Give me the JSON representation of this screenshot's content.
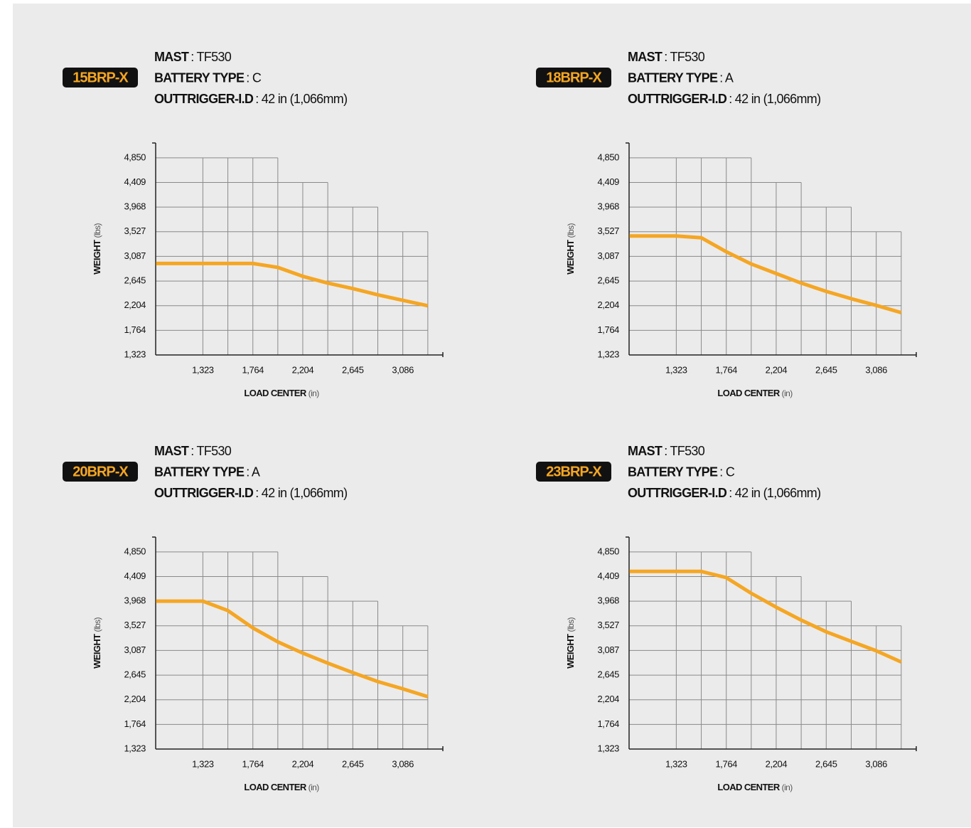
{
  "chart_data": [
    {
      "type": "line",
      "title": "15BRP-X",
      "specs": [
        {
          "label": "MAST",
          "value": ": TF530"
        },
        {
          "label": "BATTERY TYPE",
          "value": ": C"
        },
        {
          "label": "OUTTRIGGER-I.D",
          "value": ": 42 in (1,066mm)"
        }
      ],
      "xlabel": "LOAD CENTER",
      "xunit": "(in)",
      "ylabel": "WEIGHT",
      "yunit": "(lbs)",
      "x": [
        910,
        1323,
        1543,
        1764,
        1984,
        2204,
        2424,
        2645,
        2865,
        3086,
        3306
      ],
      "values": [
        2960,
        2960,
        2960,
        2960,
        2890,
        2730,
        2610,
        2510,
        2400,
        2300,
        2204
      ],
      "color": "#f5a623",
      "grid": true,
      "xlim": [
        907,
        3439
      ],
      "ylim": [
        1323,
        5115
      ],
      "xticks": [
        {
          "value": 1323,
          "label": "1,323"
        },
        {
          "value": 1764,
          "label": "1,764"
        },
        {
          "value": 2204,
          "label": "2,204"
        },
        {
          "value": 2645,
          "label": "2,645"
        },
        {
          "value": 3086,
          "label": "3,086"
        }
      ],
      "yticks": [
        {
          "value": 1323,
          "label": "1,323"
        },
        {
          "value": 1764,
          "label": "1,764"
        },
        {
          "value": 2204,
          "label": "2,204"
        },
        {
          "value": 2645,
          "label": "2,645"
        },
        {
          "value": 3087,
          "label": "3,087"
        },
        {
          "value": 3527,
          "label": "3,527"
        },
        {
          "value": 3968,
          "label": "3,968"
        },
        {
          "value": 4409,
          "label": "4,409"
        },
        {
          "value": 4850,
          "label": "4,850"
        }
      ]
    },
    {
      "type": "line",
      "title": "18BRP-X",
      "specs": [
        {
          "label": "MAST",
          "value": ": TF530"
        },
        {
          "label": "BATTERY TYPE",
          "value": ": A"
        },
        {
          "label": "OUTTRIGGER-I.D",
          "value": ": 42 in (1,066mm)"
        }
      ],
      "xlabel": "LOAD CENTER",
      "xunit": "(in)",
      "ylabel": "WEIGHT",
      "yunit": "(lbs)",
      "x": [
        910,
        1323,
        1543,
        1764,
        1984,
        2204,
        2424,
        2645,
        2865,
        3086,
        3306
      ],
      "values": [
        3450,
        3450,
        3420,
        3170,
        2950,
        2780,
        2610,
        2460,
        2330,
        2210,
        2080
      ],
      "color": "#f5a623",
      "grid": true,
      "xlim": [
        907,
        3439
      ],
      "ylim": [
        1323,
        5115
      ],
      "xticks": [
        {
          "value": 1323,
          "label": "1,323"
        },
        {
          "value": 1764,
          "label": "1,764"
        },
        {
          "value": 2204,
          "label": "2,204"
        },
        {
          "value": 2645,
          "label": "2,645"
        },
        {
          "value": 3086,
          "label": "3,086"
        }
      ],
      "yticks": [
        {
          "value": 1323,
          "label": "1,323"
        },
        {
          "value": 1764,
          "label": "1,764"
        },
        {
          "value": 2204,
          "label": "2,204"
        },
        {
          "value": 2645,
          "label": "2,645"
        },
        {
          "value": 3087,
          "label": "3,087"
        },
        {
          "value": 3527,
          "label": "3,527"
        },
        {
          "value": 3968,
          "label": "3,968"
        },
        {
          "value": 4409,
          "label": "4,409"
        },
        {
          "value": 4850,
          "label": "4,850"
        }
      ]
    },
    {
      "type": "line",
      "title": "20BRP-X",
      "specs": [
        {
          "label": "MAST",
          "value": ": TF530"
        },
        {
          "label": "BATTERY TYPE",
          "value": ": A"
        },
        {
          "label": "OUTTRIGGER-I.D",
          "value": ": 42 in (1,066mm)"
        }
      ],
      "xlabel": "LOAD CENTER",
      "xunit": "(in)",
      "ylabel": "WEIGHT",
      "yunit": "(lbs)",
      "x": [
        910,
        1323,
        1543,
        1764,
        1984,
        2204,
        2424,
        2645,
        2865,
        3086,
        3306
      ],
      "values": [
        3968,
        3968,
        3800,
        3490,
        3240,
        3040,
        2860,
        2690,
        2530,
        2400,
        2260
      ],
      "color": "#f5a623",
      "grid": true,
      "xlim": [
        907,
        3439
      ],
      "ylim": [
        1323,
        5115
      ],
      "xticks": [
        {
          "value": 1323,
          "label": "1,323"
        },
        {
          "value": 1764,
          "label": "1,764"
        },
        {
          "value": 2204,
          "label": "2,204"
        },
        {
          "value": 2645,
          "label": "2,645"
        },
        {
          "value": 3086,
          "label": "3,086"
        }
      ],
      "yticks": [
        {
          "value": 1323,
          "label": "1,323"
        },
        {
          "value": 1764,
          "label": "1,764"
        },
        {
          "value": 2204,
          "label": "2,204"
        },
        {
          "value": 2645,
          "label": "2,645"
        },
        {
          "value": 3087,
          "label": "3,087"
        },
        {
          "value": 3527,
          "label": "3,527"
        },
        {
          "value": 3968,
          "label": "3,968"
        },
        {
          "value": 4409,
          "label": "4,409"
        },
        {
          "value": 4850,
          "label": "4,850"
        }
      ]
    },
    {
      "type": "line",
      "title": "23BRP-X",
      "specs": [
        {
          "label": "MAST",
          "value": ": TF530"
        },
        {
          "label": "BATTERY TYPE",
          "value": ": C"
        },
        {
          "label": "OUTTRIGGER-I.D",
          "value": ": 42 in (1,066mm)"
        }
      ],
      "xlabel": "LOAD CENTER",
      "xunit": "(in)",
      "ylabel": "WEIGHT",
      "yunit": "(lbs)",
      "x": [
        910,
        1323,
        1543,
        1764,
        1984,
        2204,
        2424,
        2645,
        2865,
        3086,
        3306
      ],
      "values": [
        4500,
        4500,
        4500,
        4390,
        4110,
        3860,
        3630,
        3420,
        3250,
        3080,
        2880
      ],
      "color": "#f5a623",
      "grid": true,
      "xlim": [
        907,
        3439
      ],
      "ylim": [
        1323,
        5115
      ],
      "xticks": [
        {
          "value": 1323,
          "label": "1,323"
        },
        {
          "value": 1764,
          "label": "1,764"
        },
        {
          "value": 2204,
          "label": "2,204"
        },
        {
          "value": 2645,
          "label": "2,645"
        },
        {
          "value": 3086,
          "label": "3,086"
        }
      ],
      "yticks": [
        {
          "value": 1323,
          "label": "1,323"
        },
        {
          "value": 1764,
          "label": "1,764"
        },
        {
          "value": 2204,
          "label": "2,204"
        },
        {
          "value": 2645,
          "label": "2,645"
        },
        {
          "value": 3087,
          "label": "3,087"
        },
        {
          "value": 3527,
          "label": "3,527"
        },
        {
          "value": 3968,
          "label": "3,968"
        },
        {
          "value": 4409,
          "label": "4,409"
        },
        {
          "value": 4850,
          "label": "4,850"
        }
      ]
    }
  ]
}
